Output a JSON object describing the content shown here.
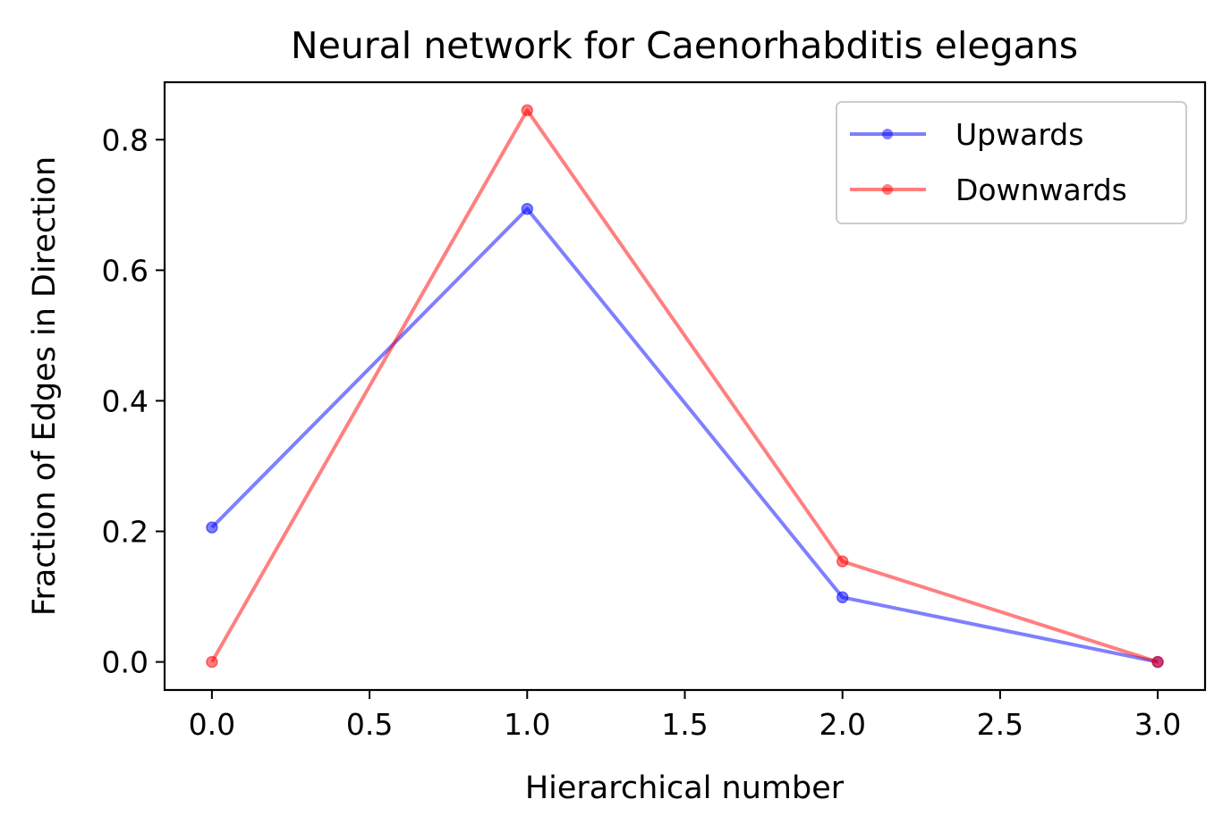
{
  "chart_data": {
    "type": "line",
    "title": "Neural network for Caenorhabditis elegans",
    "xlabel": "Hierarchical number",
    "ylabel": "Fraction of Edges in Direction",
    "x": [
      0.0,
      1.0,
      2.0,
      3.0
    ],
    "xlim": [
      -0.15,
      3.15
    ],
    "ylim": [
      -0.043,
      0.888
    ],
    "xticks": [
      0.0,
      0.5,
      1.0,
      1.5,
      2.0,
      2.5,
      3.0
    ],
    "xtick_labels": [
      "0.0",
      "0.5",
      "1.0",
      "1.5",
      "2.0",
      "2.5",
      "3.0"
    ],
    "yticks": [
      0.0,
      0.2,
      0.4,
      0.6,
      0.8
    ],
    "ytick_labels": [
      "0.0",
      "0.2",
      "0.4",
      "0.6",
      "0.8"
    ],
    "grid": false,
    "legend_position": "top-right",
    "series": [
      {
        "name": "Upwards",
        "color": "#0000ff",
        "marker": "circle",
        "values": [
          0.206,
          0.694,
          0.099,
          0.0
        ]
      },
      {
        "name": "Downwards",
        "color": "#ff0000",
        "marker": "circle",
        "values": [
          0.0,
          0.845,
          0.154,
          0.0
        ]
      }
    ]
  }
}
